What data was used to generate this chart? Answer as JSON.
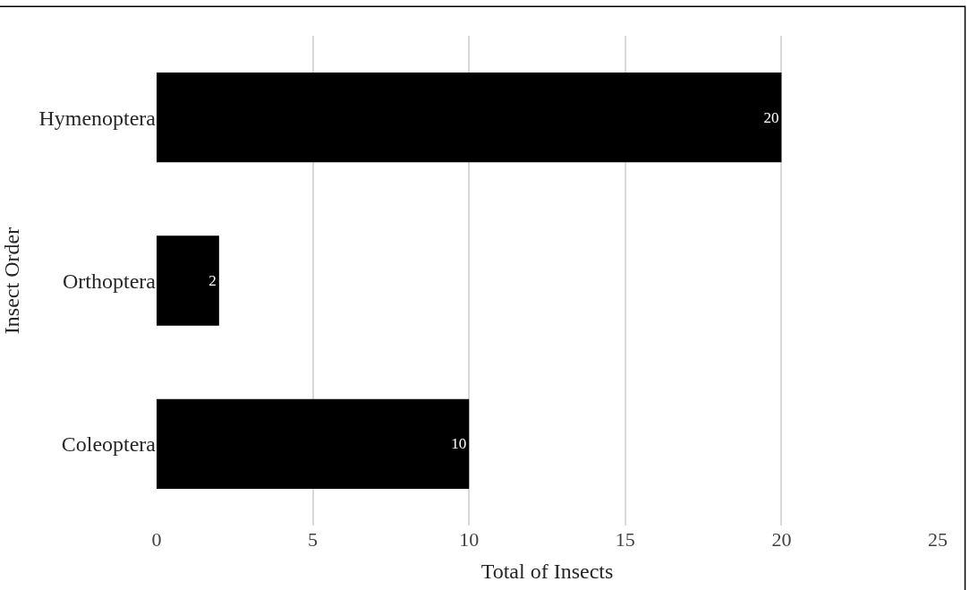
{
  "chart_data": {
    "type": "bar",
    "orientation": "horizontal",
    "xlabel": "Total of Insects",
    "ylabel": "Insect Order",
    "categories": [
      "Hymenoptera",
      "Orthoptera",
      "Coleoptera"
    ],
    "values": [
      20,
      2,
      10
    ],
    "color": "#000000",
    "xlim": [
      0,
      25
    ],
    "xticks": [
      0,
      5,
      10,
      15,
      20,
      25
    ],
    "grid": "x",
    "data_labels": true,
    "legend": false
  }
}
